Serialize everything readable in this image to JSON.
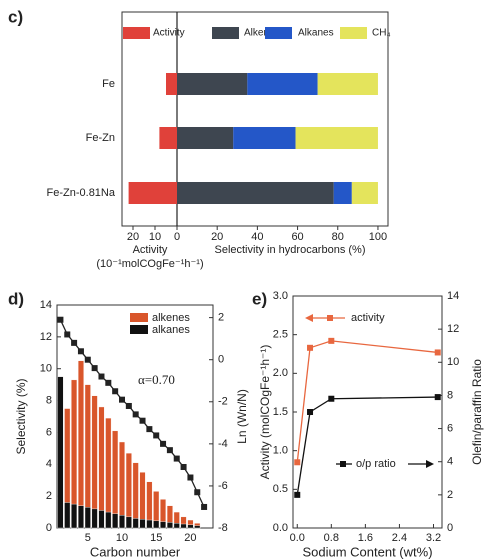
{
  "chart_data": [
    {
      "type": "hbar",
      "panel": "c)",
      "categories": [
        "Fe",
        "Fe-Zn",
        "Fe-Zn-0.81Na"
      ],
      "series": [
        {
          "name": "Activity",
          "color": "#e0413a",
          "axis": "x2",
          "values": [
            5,
            8,
            22
          ]
        },
        {
          "name": "Alkenes",
          "color": "#3e4650",
          "values": [
            35,
            28,
            78
          ]
        },
        {
          "name": "Alkanes",
          "color": "#2457c8",
          "values": [
            35,
            31,
            9
          ]
        },
        {
          "name": "CH₄",
          "color": "#e4e45c",
          "values": [
            30,
            41,
            13
          ]
        }
      ],
      "xlim": [
        0,
        105
      ],
      "xticks": [
        0,
        20,
        40,
        60,
        80,
        100
      ],
      "x2lim": [
        0,
        25
      ],
      "x2ticks": [
        20,
        10
      ],
      "xlabel": "Selectivity in hydrocarbons (%)",
      "x2label": [
        "Activity",
        "(10⁻¹molCOgFe⁻¹h⁻¹)"
      ]
    },
    {
      "type": "bar",
      "panel": "d)",
      "x": [
        1,
        2,
        3,
        4,
        5,
        6,
        7,
        8,
        9,
        10,
        11,
        12,
        13,
        14,
        15,
        16,
        17,
        18,
        19,
        20,
        21,
        22
      ],
      "series": [
        {
          "name": "alkenes",
          "color": "#d9562b",
          "values": [
            null,
            7.5,
            9.3,
            10.5,
            9.0,
            8.3,
            7.6,
            6.9,
            6.1,
            5.4,
            4.7,
            4.1,
            3.5,
            2.9,
            2.3,
            1.8,
            1.4,
            1.0,
            0.7,
            0.5,
            0.3,
            null
          ]
        },
        {
          "name": "alkanes",
          "color": "#111111",
          "values": [
            9.5,
            1.6,
            1.5,
            1.4,
            1.3,
            1.2,
            1.1,
            1.0,
            0.9,
            0.8,
            0.7,
            0.6,
            0.55,
            0.5,
            0.45,
            0.4,
            0.35,
            0.3,
            0.25,
            0.2,
            0.15,
            null
          ]
        },
        {
          "type": "line",
          "axis": "y2",
          "color": "#222222",
          "values": [
            1.9,
            1.2,
            0.8,
            0.4,
            0.0,
            -0.4,
            -0.8,
            -1.1,
            -1.5,
            -1.9,
            -2.2,
            -2.6,
            -2.9,
            -3.3,
            -3.6,
            -4.0,
            -4.3,
            -4.7,
            -5.1,
            -5.6,
            -6.3,
            -7.0
          ]
        }
      ],
      "xlim": [
        0.5,
        23.3
      ],
      "xticks": [
        5,
        10,
        15,
        20
      ],
      "ylim": [
        0,
        14
      ],
      "yticks": [
        0,
        2,
        4,
        6,
        8,
        10,
        12,
        14
      ],
      "y2lim": [
        -8,
        2.6
      ],
      "y2ticks": [
        2,
        0,
        -2,
        -4,
        -6,
        -8
      ],
      "xlabel": "Carbon number",
      "ylabel": "Selectivity (%)",
      "y2label": "Ln (Wn/N)",
      "annotation": "α=0.70"
    },
    {
      "type": "line",
      "panel": "e)",
      "x": [
        0,
        0.3,
        0.8,
        3.3
      ],
      "series": [
        {
          "name": "activity",
          "color": "#e8673f",
          "values": [
            0.85,
            2.33,
            2.42,
            2.27
          ]
        },
        {
          "name": "o/p ratio",
          "color": "#111111",
          "axis": "y2",
          "values": [
            2.0,
            7.0,
            7.8,
            7.9
          ]
        }
      ],
      "xlim": [
        -0.1,
        3.4
      ],
      "xticks": [
        {
          "value": 0,
          "label": "0.0"
        },
        0.8,
        1.6,
        2.4,
        3.2
      ],
      "ylim": [
        0,
        3
      ],
      "yticks": [
        {
          "value": 0,
          "label": "0.0"
        },
        0.5,
        {
          "value": 1,
          "label": "1.0"
        },
        1.5,
        {
          "value": 2,
          "label": "2.0"
        },
        2.5,
        {
          "value": 3,
          "label": "3.0"
        }
      ],
      "y2lim": [
        0,
        14
      ],
      "y2ticks": [
        0,
        2,
        4,
        6,
        8,
        10,
        12,
        14
      ],
      "xlabel": "Sodium Content (wt%)",
      "ylabel": "Activity (molCOgFe⁻¹h⁻¹)",
      "y2label": "Olefin/paraffin Ratio"
    }
  ]
}
